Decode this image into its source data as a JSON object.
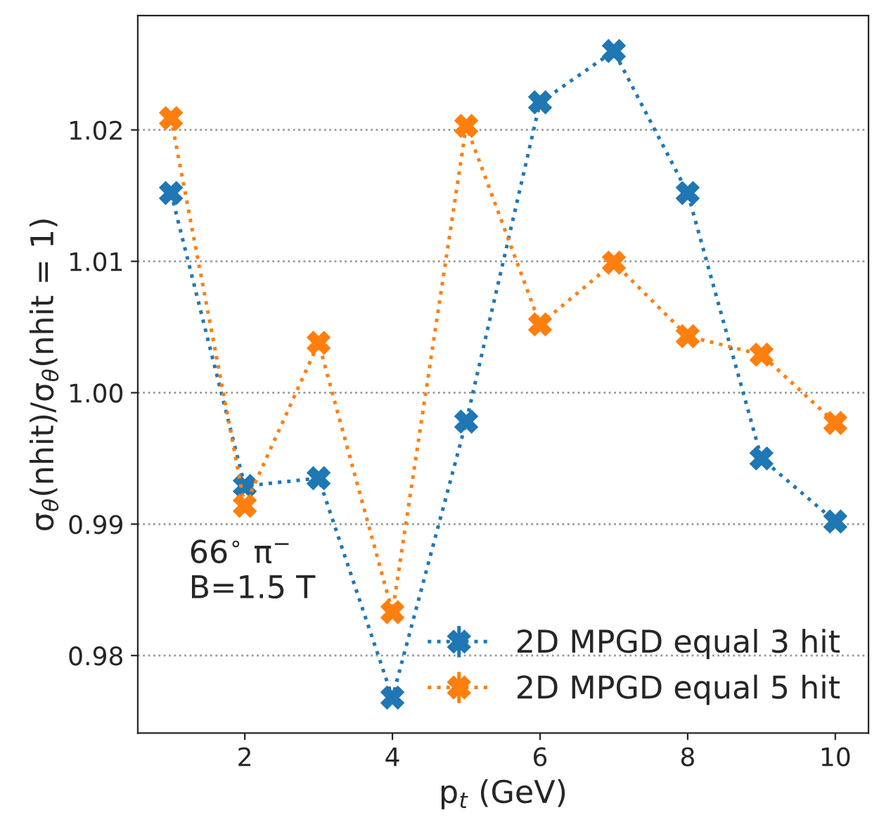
{
  "chart_data": {
    "type": "line",
    "xlabel": "p$_{t}$ (GeV)",
    "ylabel": "σ$_{θ}$(nhit)/σ$_{θ}$(nhit = 1)",
    "x": [
      1,
      2,
      3,
      4,
      5,
      6,
      7,
      8,
      9,
      10
    ],
    "series": [
      {
        "name": "2D MPGD equal 3 hit",
        "color": "#1f77b4",
        "values": [
          1.0152,
          0.9929,
          0.9935,
          0.9768,
          0.9978,
          1.0221,
          1.026,
          1.0152,
          0.995,
          0.9902
        ]
      },
      {
        "name": "2D MPGD equal 5 hit",
        "color": "#ff7f0e",
        "values": [
          1.0209,
          0.9914,
          1.0038,
          0.9833,
          1.0203,
          1.0052,
          1.0099,
          1.0043,
          1.0029,
          0.9977
        ]
      }
    ],
    "xlim": [
      0.55,
      10.45
    ],
    "xticks": [
      2,
      4,
      6,
      8,
      10
    ],
    "ylim": [
      0.9741,
      1.0287
    ],
    "yticks": [
      0.98,
      0.99,
      {
        "value": 1,
        "label": "1.00"
      },
      1.01,
      1.02
    ],
    "annotations": [
      "66$^{∘}$ π$^{−}$\nB=1.5 T"
    ],
    "grid": "y",
    "legend": "bottom right",
    "marker": "cross",
    "line_style": "dotted"
  }
}
